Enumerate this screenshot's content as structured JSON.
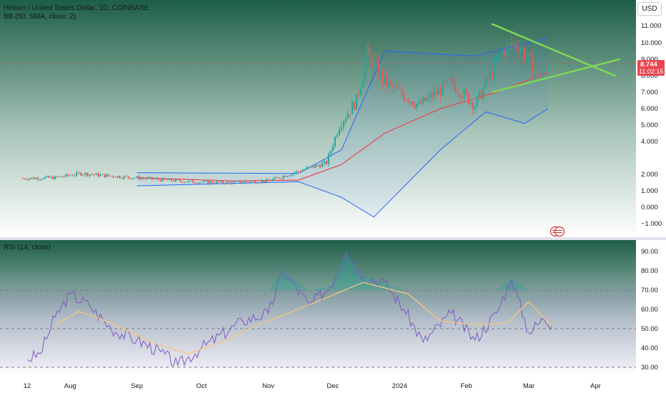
{
  "header": {
    "symbol_line": "Helium / United States Dollar, 1D, COINBASE",
    "indicator_line": "BB (50, SMA, close, 2)",
    "currency_button": "USD"
  },
  "price_badge": {
    "value": "8.744",
    "countdown": "11:02:15",
    "color": "#e8474d"
  },
  "rsi_header": "RSI (14, close)",
  "colors": {
    "pane_top": "#1d5e47",
    "candle_up": "#26a69a",
    "candle_down": "#ef5350",
    "bb_basis": "#e8474d",
    "bb_band": "#2962ff",
    "trendline": "#7dd659",
    "rsi_line": "#7e57c2",
    "rsi_ma": "#f5c77e"
  },
  "x_axis": {
    "labels": [
      "12",
      "Aug",
      "Sep",
      "Oct",
      "Nov",
      "Dec",
      "2024",
      "Feb",
      "Mar",
      "Apr"
    ]
  },
  "chart_data": [
    {
      "type": "candlestick",
      "title": "Helium / United States Dollar, 1D, COINBASE",
      "scale": "log",
      "y_ticks": [
        "11.000",
        "10.000",
        "9.000",
        "8.000",
        "7.000",
        "6.000",
        "5.000",
        "4.000",
        "2.000",
        "1.000",
        "0.000",
        "−1.000"
      ],
      "last_price": 8.744,
      "price_path": [
        {
          "date": "2023-07-10",
          "close": 1.75
        },
        {
          "date": "2023-07-25",
          "close": 1.8
        },
        {
          "date": "2023-08-06",
          "close": 2.05
        },
        {
          "date": "2023-08-20",
          "close": 1.9
        },
        {
          "date": "2023-09-05",
          "close": 1.75
        },
        {
          "date": "2023-09-25",
          "close": 1.55
        },
        {
          "date": "2023-10-15",
          "close": 1.5
        },
        {
          "date": "2023-11-01",
          "close": 1.6
        },
        {
          "date": "2023-11-15",
          "close": 2.2
        },
        {
          "date": "2023-11-28",
          "close": 2.7
        },
        {
          "date": "2023-12-04",
          "close": 5.0
        },
        {
          "date": "2023-12-12",
          "close": 6.5
        },
        {
          "date": "2023-12-17",
          "close": 9.3
        },
        {
          "date": "2023-12-25",
          "close": 7.6
        },
        {
          "date": "2024-01-10",
          "close": 6.2
        },
        {
          "date": "2024-01-25",
          "close": 7.6
        },
        {
          "date": "2024-02-05",
          "close": 6.2
        },
        {
          "date": "2024-02-18",
          "close": 9.5
        },
        {
          "date": "2024-02-25",
          "close": 10.0
        },
        {
          "date": "2024-03-05",
          "close": 8.0
        },
        {
          "date": "2024-03-10",
          "close": 8.744
        }
      ],
      "bollinger": {
        "basis": [
          {
            "date": "2023-09-01",
            "value": 1.8
          },
          {
            "date": "2023-10-15",
            "value": 1.6
          },
          {
            "date": "2023-11-15",
            "value": 1.65
          },
          {
            "date": "2023-12-05",
            "value": 2.6
          },
          {
            "date": "2023-12-25",
            "value": 4.5
          },
          {
            "date": "2024-01-20",
            "value": 6.0
          },
          {
            "date": "2024-02-15",
            "value": 7.0
          },
          {
            "date": "2024-03-10",
            "value": 8.2
          }
        ],
        "upper": [
          {
            "date": "2023-09-01",
            "value": 2.1
          },
          {
            "date": "2023-11-15",
            "value": 2.05
          },
          {
            "date": "2023-12-05",
            "value": 3.5
          },
          {
            "date": "2023-12-25",
            "value": 9.5
          },
          {
            "date": "2024-02-05",
            "value": 9.2
          },
          {
            "date": "2024-03-10",
            "value": 10.3
          }
        ],
        "lower": [
          {
            "date": "2023-09-01",
            "value": 1.3
          },
          {
            "date": "2023-11-15",
            "value": 1.55
          },
          {
            "date": "2023-12-05",
            "value": 0.6
          },
          {
            "date": "2023-12-20",
            "value": -0.6
          },
          {
            "date": "2024-01-20",
            "value": 3.5
          },
          {
            "date": "2024-02-10",
            "value": 5.8
          },
          {
            "date": "2024-02-28",
            "value": 5.1
          },
          {
            "date": "2024-03-10",
            "value": 6.0
          }
        ]
      },
      "trendlines": [
        {
          "from": {
            "date": "2024-02-13",
            "value": 11.1
          },
          "to": {
            "date": "2024-04-10",
            "value": 8.0
          }
        },
        {
          "from": {
            "date": "2024-02-13",
            "value": 7.0
          },
          "to": {
            "date": "2024-04-12",
            "value": 9.0
          }
        }
      ]
    },
    {
      "type": "line",
      "title": "RSI (14, close)",
      "y_ticks": [
        "90.00",
        "80.00",
        "70.00",
        "60.00",
        "50.00",
        "40.00",
        "30.00"
      ],
      "ylim": [
        30,
        90
      ],
      "levels": [
        70,
        50,
        30
      ],
      "series": [
        {
          "points": [
            {
              "date": "2023-07-12",
              "value": 34
            },
            {
              "date": "2023-07-18",
              "value": 37
            },
            {
              "date": "2023-07-25",
              "value": 56
            },
            {
              "date": "2023-08-01",
              "value": 68
            },
            {
              "date": "2023-08-10",
              "value": 62
            },
            {
              "date": "2023-08-20",
              "value": 50
            },
            {
              "date": "2023-09-01",
              "value": 44
            },
            {
              "date": "2023-09-12",
              "value": 38
            },
            {
              "date": "2023-09-20",
              "value": 31
            },
            {
              "date": "2023-10-01",
              "value": 40
            },
            {
              "date": "2023-10-20",
              "value": 54
            },
            {
              "date": "2023-11-01",
              "value": 58
            },
            {
              "date": "2023-11-08",
              "value": 80
            },
            {
              "date": "2023-11-20",
              "value": 62
            },
            {
              "date": "2023-11-30",
              "value": 72
            },
            {
              "date": "2023-12-07",
              "value": 90
            },
            {
              "date": "2023-12-15",
              "value": 77
            },
            {
              "date": "2023-12-25",
              "value": 74
            },
            {
              "date": "2024-01-03",
              "value": 60
            },
            {
              "date": "2024-01-12",
              "value": 43
            },
            {
              "date": "2024-01-25",
              "value": 58
            },
            {
              "date": "2024-02-05",
              "value": 44
            },
            {
              "date": "2024-02-15",
              "value": 58
            },
            {
              "date": "2024-02-22",
              "value": 76
            },
            {
              "date": "2024-03-01",
              "value": 48
            },
            {
              "date": "2024-03-08",
              "value": 55
            },
            {
              "date": "2024-03-12",
              "value": 52
            }
          ]
        },
        {
          "points": [
            {
              "date": "2023-07-25",
              "value": 52
            },
            {
              "date": "2023-08-05",
              "value": 59
            },
            {
              "date": "2023-08-20",
              "value": 53
            },
            {
              "date": "2023-09-10",
              "value": 42
            },
            {
              "date": "2023-09-25",
              "value": 37
            },
            {
              "date": "2023-10-10",
              "value": 43
            },
            {
              "date": "2023-10-25",
              "value": 51
            },
            {
              "date": "2023-11-10",
              "value": 58
            },
            {
              "date": "2023-11-28",
              "value": 66
            },
            {
              "date": "2023-12-15",
              "value": 74
            },
            {
              "date": "2024-01-05",
              "value": 68
            },
            {
              "date": "2024-01-20",
              "value": 54
            },
            {
              "date": "2024-02-05",
              "value": 52
            },
            {
              "date": "2024-02-20",
              "value": 53
            },
            {
              "date": "2024-03-01",
              "value": 64
            },
            {
              "date": "2024-03-12",
              "value": 51
            }
          ]
        }
      ]
    }
  ]
}
